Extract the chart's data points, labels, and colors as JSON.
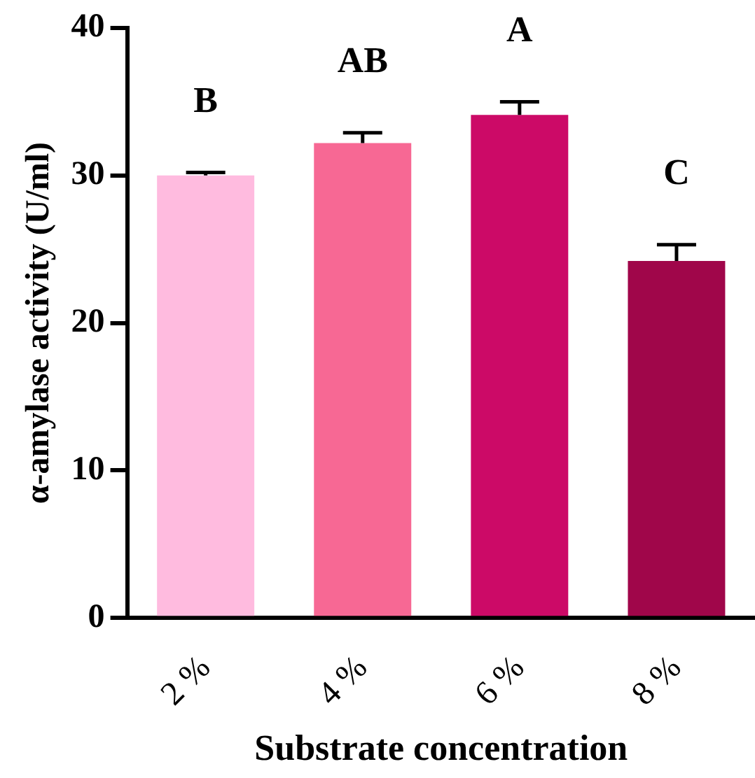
{
  "chart_data": {
    "type": "bar",
    "xlabel": "Substrate concentration",
    "ylabel": "α-amylase activity (U/ml)",
    "categories": [
      "2 %",
      "4 %",
      "6 %",
      "8 %"
    ],
    "values": [
      30.0,
      32.2,
      34.1,
      24.2
    ],
    "colors": [
      "#ffbbdf",
      "#f76894",
      "#cc0a67",
      "#a0064a"
    ],
    "errors": [
      [
        30.0,
        30.2
      ],
      [
        32.2,
        32.9
      ],
      [
        34.1,
        35.0
      ],
      [
        24.2,
        25.3
      ]
    ],
    "ylim": [
      0,
      40
    ],
    "yticks": [
      0,
      10,
      20,
      30,
      40
    ],
    "grid": false,
    "legend": false,
    "annotations": [
      "B",
      "AB",
      "A",
      "C"
    ]
  }
}
